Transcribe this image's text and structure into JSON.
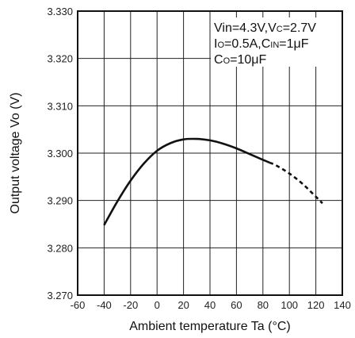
{
  "chart_data": {
    "type": "line",
    "xlabel": "Ambient temperature Ta (°C)",
    "ylabel": "Output voltage Vo (V)",
    "xlim": [
      -60,
      140
    ],
    "ylim": [
      3.27,
      3.33
    ],
    "x_ticks": [
      -60,
      -40,
      -20,
      0,
      20,
      40,
      60,
      80,
      100,
      120,
      140
    ],
    "y_ticks": [
      3.27,
      3.28,
      3.29,
      3.3,
      3.31,
      3.32,
      3.33
    ],
    "x_tick_labels": [
      "-60",
      "-40",
      "-20",
      "0",
      "20",
      "40",
      "60",
      "80",
      "100",
      "120",
      "140"
    ],
    "y_tick_labels": [
      "3.270",
      "3.280",
      "3.290",
      "3.300",
      "3.310",
      "3.320",
      "3.330"
    ],
    "grid": true,
    "annotations": [
      [
        "Vin=4.3V,V",
        {
          "sub": "C"
        },
        "=2.7V"
      ],
      [
        "I",
        {
          "sub": "O"
        },
        "=0.5A,C",
        {
          "sub": "IN"
        },
        "=1μF"
      ],
      [
        "C",
        {
          "sub": "O"
        },
        "=10μF"
      ]
    ],
    "series": [
      {
        "style": "solid",
        "x": [
          -40,
          -30,
          -20,
          -10,
          0,
          10,
          20,
          30,
          40,
          50,
          60,
          70,
          80,
          85
        ],
        "y": [
          3.2848,
          3.2898,
          3.2942,
          3.2978,
          3.3005,
          3.3021,
          3.3029,
          3.303,
          3.3027,
          3.302,
          3.301,
          3.2998,
          3.2986,
          3.298
        ]
      },
      {
        "style": "dashed",
        "x": [
          85,
          90,
          100,
          110,
          120,
          125
        ],
        "y": [
          3.298,
          3.2974,
          3.2957,
          3.2935,
          3.2908,
          3.2894
        ]
      }
    ]
  }
}
